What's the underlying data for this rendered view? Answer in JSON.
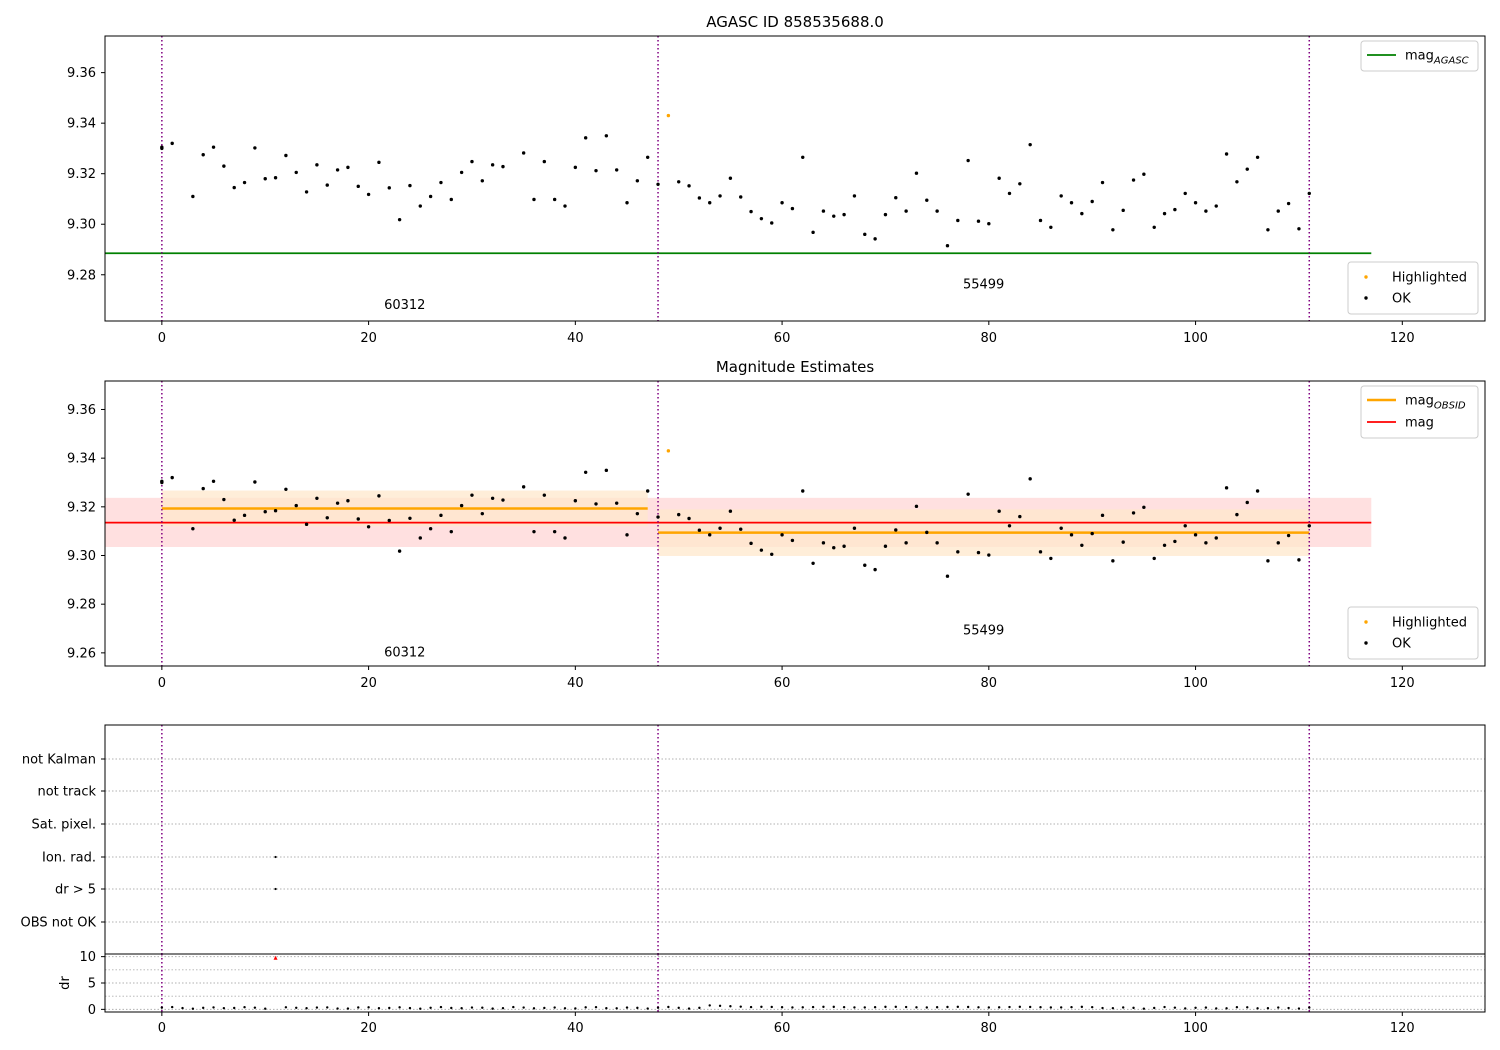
{
  "figure": {
    "width": 1500,
    "height": 1050
  },
  "colors": {
    "ok": "#000000",
    "highlighted": "#ffa500",
    "agasc_line": "#008000",
    "mag_line": "#ff0000",
    "obsid_line": "#ffa500",
    "obs_boundary": "#800080",
    "band_mag": "#ffdddd",
    "band_obsid": "#ffe8cc",
    "grid": "#b0b0b0",
    "flag_red": "#ff0000"
  },
  "chart_data": [
    {
      "panel": "top",
      "type": "scatter",
      "title": "AGASC ID 858535688.0",
      "xlim": [
        -5.5,
        128
      ],
      "ylim": [
        9.2617,
        9.3745
      ],
      "xticks": [
        0,
        20,
        40,
        60,
        80,
        100,
        120
      ],
      "yticks": [
        9.28,
        9.3,
        9.32,
        9.34,
        9.36
      ],
      "ytick_labels": [
        "9.28",
        "9.30",
        "9.32",
        "9.34",
        "9.36"
      ],
      "obs_boundaries": [
        0,
        48,
        111
      ],
      "obsid_labels": [
        {
          "text": "60312",
          "x": 23.5,
          "y": 9.2665
        },
        {
          "text": "55499",
          "x": 79.5,
          "y": 9.2745
        }
      ],
      "agasc_mag": {
        "value": 9.2885,
        "x_range": [
          -5.5,
          117
        ]
      },
      "series": [
        {
          "name": "OK",
          "x": [],
          "y": []
        },
        {
          "name": "Highlighted",
          "x": [
            49
          ],
          "y": [
            9.343
          ]
        }
      ],
      "legend_upper": [
        {
          "label": "mag",
          "sub": "AGASC",
          "kind": "line",
          "color_key": "agasc_line"
        }
      ],
      "legend_lower": [
        {
          "label": "Highlighted",
          "kind": "dot",
          "color_key": "highlighted"
        },
        {
          "label": "OK",
          "kind": "dot",
          "color_key": "ok"
        }
      ]
    },
    {
      "panel": "middle",
      "type": "scatter",
      "title": "Magnitude Estimates",
      "xlim": [
        -5.5,
        128
      ],
      "ylim": [
        9.2546,
        9.3717
      ],
      "xticks": [
        0,
        20,
        40,
        60,
        80,
        100,
        120
      ],
      "yticks": [
        9.26,
        9.28,
        9.3,
        9.32,
        9.34,
        9.36
      ],
      "ytick_labels": [
        "9.26",
        "9.28",
        "9.30",
        "9.32",
        "9.34",
        "9.36"
      ],
      "obs_boundaries": [
        0,
        48,
        111
      ],
      "obsid_labels": [
        {
          "text": "60312",
          "x": 23.5,
          "y": 9.2585
        },
        {
          "text": "55499",
          "x": 79.5,
          "y": 9.2675
        }
      ],
      "mag": {
        "value": 9.3135,
        "band": [
          9.3035,
          9.3237
        ],
        "x_range": [
          -5.5,
          117
        ]
      },
      "obsid_mags": [
        {
          "value": 9.3193,
          "band": [
            9.312,
            9.3267
          ],
          "x_range": [
            0,
            47
          ]
        },
        {
          "value": 9.3094,
          "band": [
            9.2998,
            9.319
          ],
          "x_range": [
            48,
            111
          ]
        }
      ],
      "series": [
        {
          "name": "OK",
          "x": [],
          "y": []
        },
        {
          "name": "Highlighted",
          "x": [
            49
          ],
          "y": [
            9.343
          ]
        }
      ],
      "legend_upper": [
        {
          "label": "mag",
          "sub": "OBSID",
          "kind": "line",
          "color_key": "obsid_line"
        },
        {
          "label": "mag",
          "sub": "",
          "kind": "line",
          "color_key": "mag_line"
        }
      ],
      "legend_lower": [
        {
          "label": "Highlighted",
          "kind": "dot",
          "color_key": "highlighted"
        },
        {
          "label": "OK",
          "kind": "dot",
          "color_key": "ok"
        }
      ]
    },
    {
      "panel": "flags",
      "type": "scatter",
      "categories": [
        "not Kalman",
        "not track",
        "Sat. pixel.",
        "Ion. rad.",
        "dr > 5",
        "OBS not OK"
      ],
      "xlim": [
        -5.5,
        128
      ],
      "obs_boundaries": [
        0,
        48,
        111
      ],
      "flagged": [
        {
          "category": "Ion. rad.",
          "x": 11
        },
        {
          "category": "dr > 5",
          "x": 11
        }
      ]
    },
    {
      "panel": "dr",
      "type": "scatter",
      "ylabel": "dr",
      "xlim": [
        -5.5,
        128
      ],
      "ylim": [
        -0.5,
        10.5
      ],
      "xticks": [
        0,
        20,
        40,
        60,
        80,
        100,
        120
      ],
      "yticks": [
        0,
        5,
        10
      ],
      "ytick_labels": [
        "0",
        "5",
        "10"
      ],
      "obs_boundaries": [
        0,
        48,
        111
      ],
      "series": [
        {
          "name": "dr",
          "x": [],
          "y": []
        },
        {
          "name": "dr > 5",
          "x": [
            11
          ],
          "y": [
            9.8
          ]
        }
      ]
    }
  ]
}
